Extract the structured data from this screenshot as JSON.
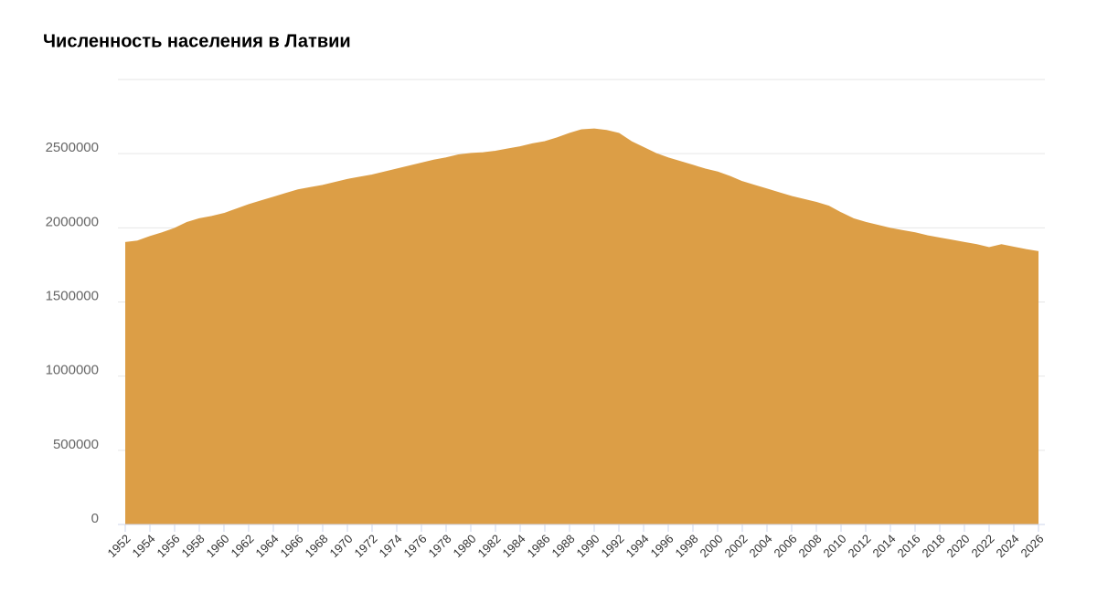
{
  "chart_data": {
    "type": "area",
    "title": "Численность населения в Латвии",
    "x": [
      1952,
      1953,
      1954,
      1955,
      1956,
      1957,
      1958,
      1959,
      1960,
      1961,
      1962,
      1963,
      1964,
      1965,
      1966,
      1967,
      1968,
      1969,
      1970,
      1971,
      1972,
      1973,
      1974,
      1975,
      1976,
      1977,
      1978,
      1979,
      1980,
      1981,
      1982,
      1983,
      1984,
      1985,
      1986,
      1987,
      1988,
      1989,
      1990,
      1991,
      1992,
      1993,
      1994,
      1995,
      1996,
      1997,
      1998,
      1999,
      2000,
      2001,
      2002,
      2003,
      2004,
      2005,
      2006,
      2007,
      2008,
      2009,
      2010,
      2011,
      2012,
      2013,
      2014,
      2015,
      2016,
      2017,
      2018,
      2019,
      2020,
      2021,
      2022,
      2023,
      2024,
      2025,
      2026
    ],
    "series": [
      {
        "color": "#dc9e46",
        "values": [
          1900000,
          1910000,
          1940000,
          1965000,
          1995000,
          2035000,
          2060000,
          2075000,
          2095000,
          2125000,
          2155000,
          2180000,
          2205000,
          2230000,
          2255000,
          2270000,
          2285000,
          2305000,
          2325000,
          2340000,
          2355000,
          2375000,
          2395000,
          2415000,
          2435000,
          2455000,
          2470000,
          2490000,
          2500000,
          2505000,
          2515000,
          2530000,
          2545000,
          2565000,
          2580000,
          2605000,
          2635000,
          2660000,
          2665000,
          2655000,
          2635000,
          2580000,
          2540000,
          2500000,
          2470000,
          2445000,
          2420000,
          2395000,
          2375000,
          2345000,
          2310000,
          2285000,
          2260000,
          2235000,
          2210000,
          2190000,
          2170000,
          2145000,
          2100000,
          2060000,
          2035000,
          2015000,
          1995000,
          1980000,
          1965000,
          1945000,
          1930000,
          1915000,
          1900000,
          1885000,
          1865000,
          1885000,
          1868000,
          1852000,
          1838000
        ]
      }
    ],
    "xlim": [
      1952,
      2026
    ],
    "xticks": [
      1952,
      1954,
      1956,
      1958,
      1960,
      1962,
      1964,
      1966,
      1968,
      1970,
      1972,
      1974,
      1976,
      1978,
      1980,
      1982,
      1984,
      1986,
      1988,
      1990,
      1992,
      1994,
      1996,
      1998,
      2000,
      2002,
      2004,
      2006,
      2008,
      2010,
      2012,
      2014,
      2016,
      2018,
      2020,
      2022,
      2024,
      2026
    ],
    "ylim": [
      0,
      3000000
    ],
    "yticks": [
      0,
      500000,
      1000000,
      1500000,
      2000000,
      2500000
    ],
    "grid": true
  }
}
